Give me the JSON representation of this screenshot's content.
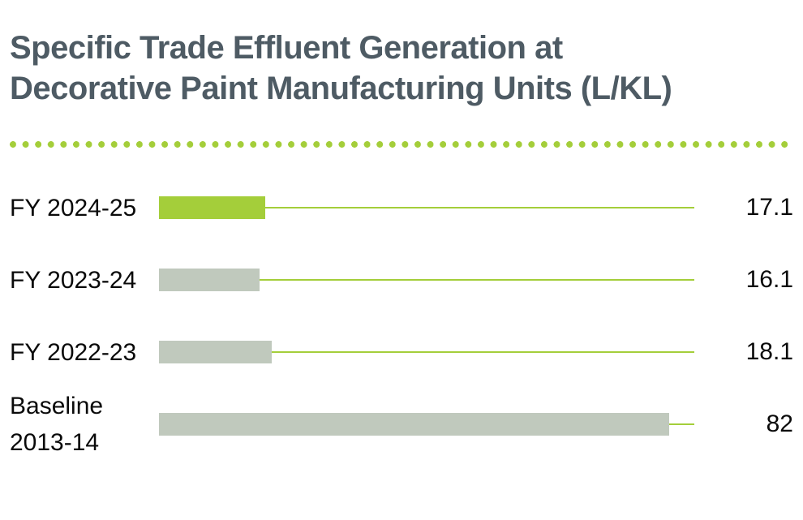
{
  "title": {
    "line1": "Specific Trade Effluent Generation at",
    "line2": "Decorative Paint Manufacturing Units (L/KL)",
    "full": "Specific Trade Effluent Generation at Decorative Paint Manufacturing Units (L/KL)"
  },
  "chart_data": {
    "type": "bar",
    "orientation": "horizontal",
    "title": "Specific Trade Effluent Generation at Decorative Paint Manufacturing Units (L/KL)",
    "unit": "L/KL",
    "categories": [
      "FY 2024-25",
      "FY 2023-24",
      "FY 2022-23",
      "Baseline 2013-14"
    ],
    "values": [
      17.1,
      16.1,
      18.1,
      82
    ],
    "xlim": [
      0,
      86
    ],
    "grid": false,
    "legend": "none",
    "rows": [
      {
        "label": "FY 2024-25",
        "label2": "",
        "value": 17.1,
        "bar_color": "#a4ce3a",
        "highlighted": true
      },
      {
        "label": "FY 2023-24",
        "label2": "",
        "value": 16.1,
        "bar_color": "#c0c9bd",
        "highlighted": false
      },
      {
        "label": "FY 2022-23",
        "label2": "",
        "value": 18.1,
        "bar_color": "#c0c9bd",
        "highlighted": false
      },
      {
        "label": "Baseline",
        "label2": "2013-14",
        "value": 82,
        "bar_color": "#c0c9bd",
        "highlighted": false
      }
    ],
    "colors": {
      "highlight_bar": "#a4ce3a",
      "muted_bar": "#c0c9bd",
      "axis_line": "#a4ce3a",
      "separator_dots": "#a4ce3a",
      "title_text": "#4e5b64",
      "label_text": "#0a0a0a",
      "background": "#ffffff"
    }
  }
}
